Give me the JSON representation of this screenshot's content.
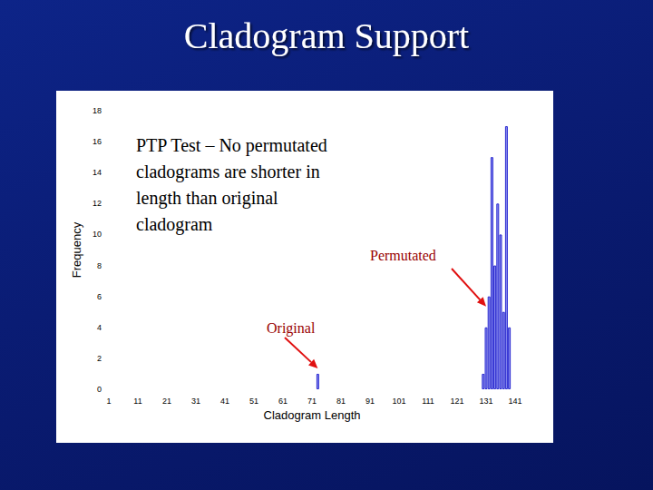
{
  "chart_data": {
    "type": "bar",
    "title": "Cladogram Support",
    "x_label": "Cladogram Length",
    "y_label": "Frequency",
    "x": [
      73,
      130,
      131,
      132,
      133,
      134,
      135,
      136,
      137,
      138,
      139
    ],
    "values": [
      1,
      1,
      4,
      6,
      15,
      8,
      12,
      10,
      5,
      17,
      4
    ],
    "color": "#8c8ff0",
    "xlim": [
      1,
      141
    ],
    "xticks": [
      1,
      11,
      21,
      31,
      41,
      51,
      61,
      71,
      81,
      91,
      101,
      111,
      121,
      131,
      141
    ],
    "ylim": [
      0,
      18
    ],
    "yticks": [
      0,
      2,
      4,
      6,
      8,
      10,
      12,
      14,
      16,
      18
    ],
    "grid": false,
    "annotations": [
      {
        "text": "PTP Test – No permutated\ncladograms are shorter in\nlength than original\ncladogram"
      },
      {
        "text": "Permutated",
        "x": 131,
        "y": 5
      },
      {
        "text": "Original",
        "x": 73,
        "y": 1
      }
    ]
  }
}
